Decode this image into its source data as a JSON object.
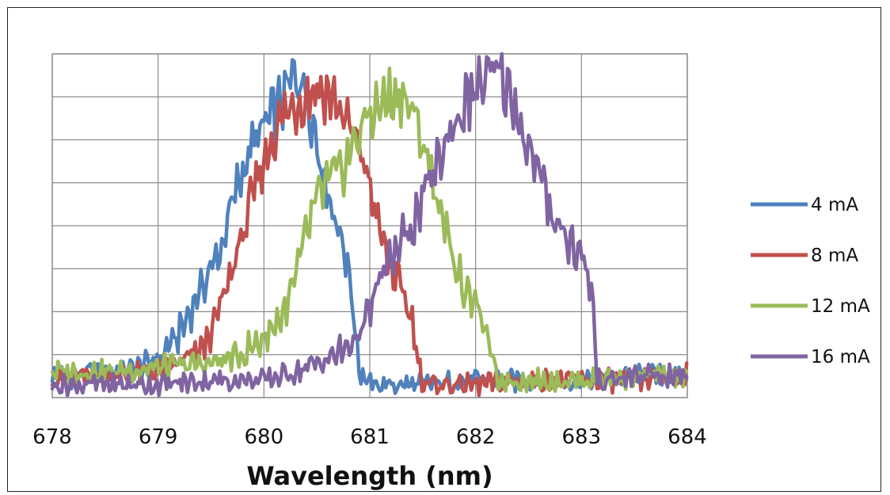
{
  "chart_data": {
    "type": "line",
    "title": "",
    "xlabel": "Wavelength (nm)",
    "ylabel": "",
    "xlim": [
      678,
      684
    ],
    "ylim": [
      0,
      8
    ],
    "grid": true,
    "legend_position": "right",
    "x_ticks": [
      "678",
      "679",
      "680",
      "681",
      "682",
      "683",
      "684"
    ],
    "series": [
      {
        "name": "4 mA",
        "color": "#4f81bd",
        "x": [
          678.0,
          678.2,
          678.4,
          678.6,
          678.8,
          679.0,
          679.1,
          679.2,
          679.3,
          679.4,
          679.5,
          679.6,
          679.7,
          679.8,
          679.9,
          680.0,
          680.1,
          680.2,
          680.3,
          680.4,
          680.5,
          680.6,
          680.7,
          680.8,
          680.85,
          680.9,
          681.0,
          681.2,
          681.5,
          682.0,
          682.5,
          683.0,
          683.5,
          684.0
        ],
        "y": [
          0.5,
          0.5,
          0.6,
          0.6,
          0.7,
          0.9,
          1.2,
          1.5,
          2.0,
          2.5,
          3.0,
          3.5,
          4.5,
          5.3,
          5.9,
          6.3,
          6.6,
          7.0,
          7.6,
          7.2,
          6.0,
          4.8,
          4.0,
          3.0,
          2.0,
          0.6,
          0.3,
          0.3,
          0.3,
          0.4,
          0.4,
          0.4,
          0.5,
          0.5
        ]
      },
      {
        "name": "8 mA",
        "color": "#c0504d",
        "x": [
          678.0,
          678.5,
          679.0,
          679.2,
          679.4,
          679.5,
          679.6,
          679.7,
          679.8,
          679.9,
          680.0,
          680.1,
          680.2,
          680.3,
          680.4,
          680.5,
          680.6,
          680.7,
          680.8,
          680.9,
          681.0,
          681.1,
          681.2,
          681.3,
          681.4,
          681.5,
          681.6,
          682.0,
          682.5,
          683.0,
          683.5,
          684.0
        ],
        "y": [
          0.4,
          0.5,
          0.6,
          0.8,
          1.1,
          1.5,
          2.2,
          3.0,
          3.8,
          4.7,
          5.5,
          6.2,
          6.6,
          6.8,
          7.1,
          7.2,
          7.1,
          6.8,
          6.3,
          5.8,
          5.0,
          3.8,
          3.0,
          2.5,
          1.8,
          0.3,
          0.3,
          0.3,
          0.4,
          0.4,
          0.4,
          0.5
        ]
      },
      {
        "name": "12 mA",
        "color": "#9bbb59",
        "x": [
          678.0,
          678.5,
          679.0,
          679.5,
          679.8,
          680.0,
          680.2,
          680.3,
          680.4,
          680.5,
          680.6,
          680.7,
          680.8,
          680.9,
          681.0,
          681.1,
          681.2,
          681.3,
          681.4,
          681.5,
          681.6,
          681.7,
          681.8,
          681.9,
          682.0,
          682.1,
          682.2,
          682.5,
          683.0,
          683.5,
          684.0
        ],
        "y": [
          0.6,
          0.6,
          0.7,
          0.8,
          1.0,
          1.4,
          2.0,
          2.8,
          3.8,
          4.6,
          5.0,
          5.2,
          5.6,
          6.2,
          6.6,
          6.8,
          7.0,
          7.1,
          6.6,
          6.0,
          5.0,
          4.0,
          3.2,
          2.5,
          2.2,
          1.5,
          0.4,
          0.4,
          0.4,
          0.5,
          0.5
        ]
      },
      {
        "name": "16 mA",
        "color": "#8064a2",
        "x": [
          678.0,
          678.5,
          679.0,
          679.5,
          680.0,
          680.3,
          680.5,
          680.7,
          680.8,
          680.9,
          681.0,
          681.1,
          681.2,
          681.3,
          681.4,
          681.5,
          681.6,
          681.7,
          681.8,
          681.9,
          682.0,
          682.1,
          682.2,
          682.3,
          682.4,
          682.5,
          682.6,
          682.7,
          682.8,
          682.9,
          683.0,
          683.1,
          683.15,
          683.3,
          683.5,
          684.0
        ],
        "y": [
          0.3,
          0.3,
          0.3,
          0.4,
          0.4,
          0.6,
          0.8,
          1.0,
          1.2,
          1.5,
          2.0,
          2.8,
          3.2,
          3.6,
          4.0,
          4.6,
          5.2,
          5.8,
          6.4,
          6.8,
          7.2,
          7.4,
          7.5,
          7.2,
          6.6,
          5.8,
          5.2,
          4.4,
          4.0,
          3.6,
          3.3,
          2.5,
          0.4,
          0.4,
          0.5,
          0.5
        ]
      }
    ]
  }
}
